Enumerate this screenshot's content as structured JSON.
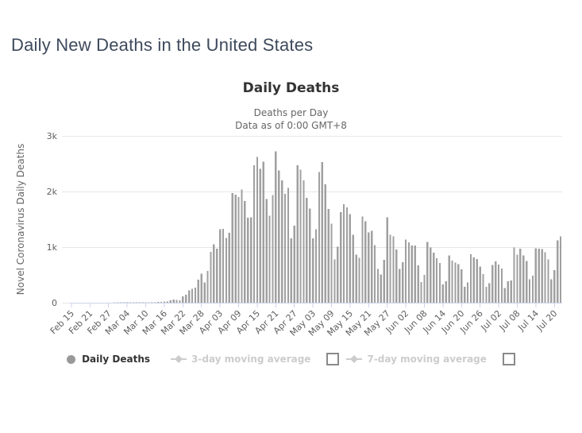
{
  "page": {
    "title": "Daily New Deaths in the United States"
  },
  "chart_data": {
    "type": "bar",
    "title": "Daily Deaths",
    "subtitle1": "Deaths per Day",
    "subtitle2": "Data as of 0:00 GMT+8",
    "xlabel": "",
    "ylabel": "Novel Coronavirus Daily Deaths",
    "ylim": [
      0,
      3000
    ],
    "y_tick_labels": [
      "0",
      "1k",
      "2k",
      "3k"
    ],
    "grid": true,
    "legend_position": "bottom",
    "x_start_date": "Feb 15",
    "x_end_date": "Jul 22",
    "x_tick_every_days": 6,
    "x_tick_labels": [
      "Feb 15",
      "Feb 21",
      "Feb 27",
      "Mar 04",
      "Mar 10",
      "Mar 16",
      "Mar 22",
      "Mar 28",
      "Apr 03",
      "Apr 09",
      "Apr 15",
      "Apr 21",
      "Apr 27",
      "May 03",
      "May 09",
      "May 15",
      "May 21",
      "May 27",
      "Jun 02",
      "Jun 08",
      "Jun 14",
      "Jun 20",
      "Jun 26",
      "Jul 02",
      "Jul 08",
      "Jul 14",
      "Jul 20"
    ],
    "series": [
      {
        "name": "Daily Deaths",
        "type": "bar",
        "visible": true,
        "color": "#a0a0a0",
        "values": [
          0,
          0,
          0,
          0,
          0,
          0,
          0,
          0,
          0,
          0,
          0,
          0,
          0,
          0,
          1,
          1,
          4,
          3,
          2,
          1,
          3,
          4,
          3,
          4,
          4,
          8,
          3,
          9,
          11,
          11,
          18,
          23,
          41,
          57,
          49,
          46,
          113,
          141,
          225,
          247,
          268,
          411,
          525,
          363,
          573,
          912,
          1049,
          968,
          1321,
          1331,
          1165,
          1255,
          1970,
          1940,
          1900,
          2035,
          1830,
          1528,
          1535,
          2470,
          2621,
          2408,
          2535,
          1867,
          1561,
          1939,
          2724,
          2376,
          2201,
          1954,
          2065,
          1157,
          1384,
          2470,
          2390,
          2201,
          1883,
          1691,
          1154,
          1324,
          2350,
          2528,
          2129,
          1687,
          1422,
          776,
          1008,
          1630,
          1772,
          1715,
          1595,
          1218,
          865,
          808,
          1552,
          1461,
          1263,
          1293,
          1037,
          605,
          505,
          774,
          1535,
          1223,
          1193,
          960,
          605,
          730,
          1134,
          1083,
          1031,
          1030,
          670,
          373,
          503,
          1093,
          992,
          903,
          803,
          715,
          330,
          389,
          848,
          757,
          723,
          693,
          598,
          286,
          361,
          875,
          813,
          783,
          649,
          515,
          287,
          351,
          680,
          740,
          683,
          614,
          267,
          383,
          397,
          993,
          862,
          975,
          849,
          753,
          423,
          484,
          980,
          973,
          963,
          908,
          781,
          423,
          583,
          1120,
          1195
        ]
      },
      {
        "name": "3-day moving average",
        "type": "line",
        "visible": false,
        "has_checkbox": true,
        "checkbox_checked": false
      },
      {
        "name": "7-day moving average",
        "type": "line",
        "visible": false,
        "has_checkbox": true,
        "checkbox_checked": false
      }
    ]
  },
  "ui": {
    "colors": {
      "page_title": "#3e4a5c",
      "chart_title": "#333333",
      "subtitle": "#666666",
      "bars": "#a0a0a0",
      "gridline": "#e6e6e6",
      "axis_line": "#ccd6eb",
      "axis_label": "#606060",
      "legend_active": "#333333",
      "legend_disabled": "#cccccc"
    }
  }
}
